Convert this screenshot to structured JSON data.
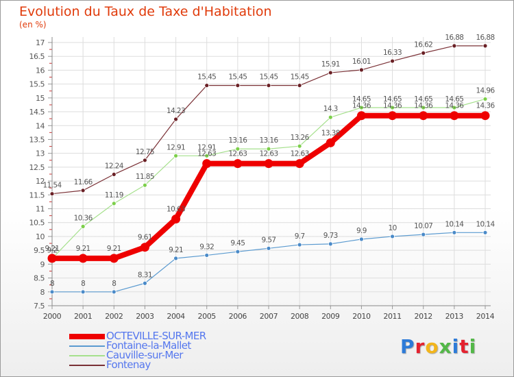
{
  "title": "Evolution du Taux de Taxe d'Habitation",
  "unit_label": "(en %)",
  "logo": {
    "text": "Proxiti",
    "colors": [
      "#2d7bd8",
      "#e4222f",
      "#f2b51c",
      "#53b848",
      "#2d7bd8",
      "#e4222f",
      "#53b848"
    ]
  },
  "chart_data": {
    "type": "line",
    "title": "Evolution du Taux de Taxe d'Habitation",
    "ylabel": "(en %)",
    "xlabel": "",
    "ylim": [
      7.5,
      17
    ],
    "yticks": [
      "7.5",
      "8",
      "8.5",
      "9",
      "9.5",
      "10",
      "10.5",
      "11",
      "11.5",
      "12",
      "12.5",
      "13",
      "13.5",
      "14",
      "14.5",
      "15",
      "15.5",
      "16",
      "16.5",
      "17"
    ],
    "grid": true,
    "legend_position": "bottom-left",
    "x": [
      "2000",
      "2001",
      "2002",
      "2003",
      "2004",
      "2005",
      "2006",
      "2007",
      "2008",
      "2009",
      "2010",
      "2011",
      "2012",
      "2013",
      "2014"
    ],
    "series": [
      {
        "name": "OCTEVILLE-SUR-MER",
        "color": "#ee0000",
        "values": [
          9.21,
          9.21,
          9.21,
          9.61,
          10.63,
          12.63,
          12.63,
          12.63,
          12.63,
          13.38,
          14.36,
          14.36,
          14.36,
          14.36,
          14.36
        ],
        "labels": [
          "9.21",
          "9.21",
          "9.21",
          "9.61",
          "10.63",
          "12.63",
          "12.63",
          "12.63",
          "12.63",
          "13.38",
          "14.36",
          "14.36",
          "14.36",
          "14.36",
          "14.36"
        ]
      },
      {
        "name": "Fontaine-la-Mallet",
        "color": "#5a9ad0",
        "values": [
          8,
          8,
          8,
          8.31,
          9.21,
          9.32,
          9.45,
          9.57,
          9.7,
          9.73,
          9.9,
          10,
          10.07,
          10.14,
          10.14
        ],
        "labels": [
          "8",
          "8",
          "8",
          "8.31",
          "9.21",
          "9.32",
          "9.45",
          "9.57",
          "9.7",
          "9.73",
          "9.9",
          "10",
          "10.07",
          "10.14",
          "10.14"
        ]
      },
      {
        "name": "Cauville-sur-Mer",
        "color": "#99e07a",
        "values": [
          9.2,
          10.36,
          11.19,
          11.85,
          12.91,
          12.91,
          13.16,
          13.16,
          13.26,
          14.3,
          14.65,
          14.65,
          14.65,
          14.65,
          14.96
        ],
        "labels": [
          "9.2",
          "10.36",
          "11.19",
          "11.85",
          "12.91",
          "12.91",
          "13.16",
          "13.16",
          "13.26",
          "14.3",
          "14.65",
          "14.65",
          "14.65",
          "14.65",
          "14.96"
        ]
      },
      {
        "name": "Fontenay",
        "color": "#7a3035",
        "values": [
          11.54,
          11.66,
          12.24,
          12.75,
          14.23,
          15.45,
          15.45,
          15.45,
          15.45,
          15.91,
          16.01,
          16.33,
          16.62,
          16.88,
          16.88
        ],
        "labels": [
          "11.54",
          "11.66",
          "12.24",
          "12.75",
          "14.23",
          "15.45",
          "15.45",
          "15.45",
          "15.45",
          "15.91",
          "16.01",
          "16.33",
          "16.62",
          "16.88",
          "16.88"
        ]
      }
    ]
  }
}
